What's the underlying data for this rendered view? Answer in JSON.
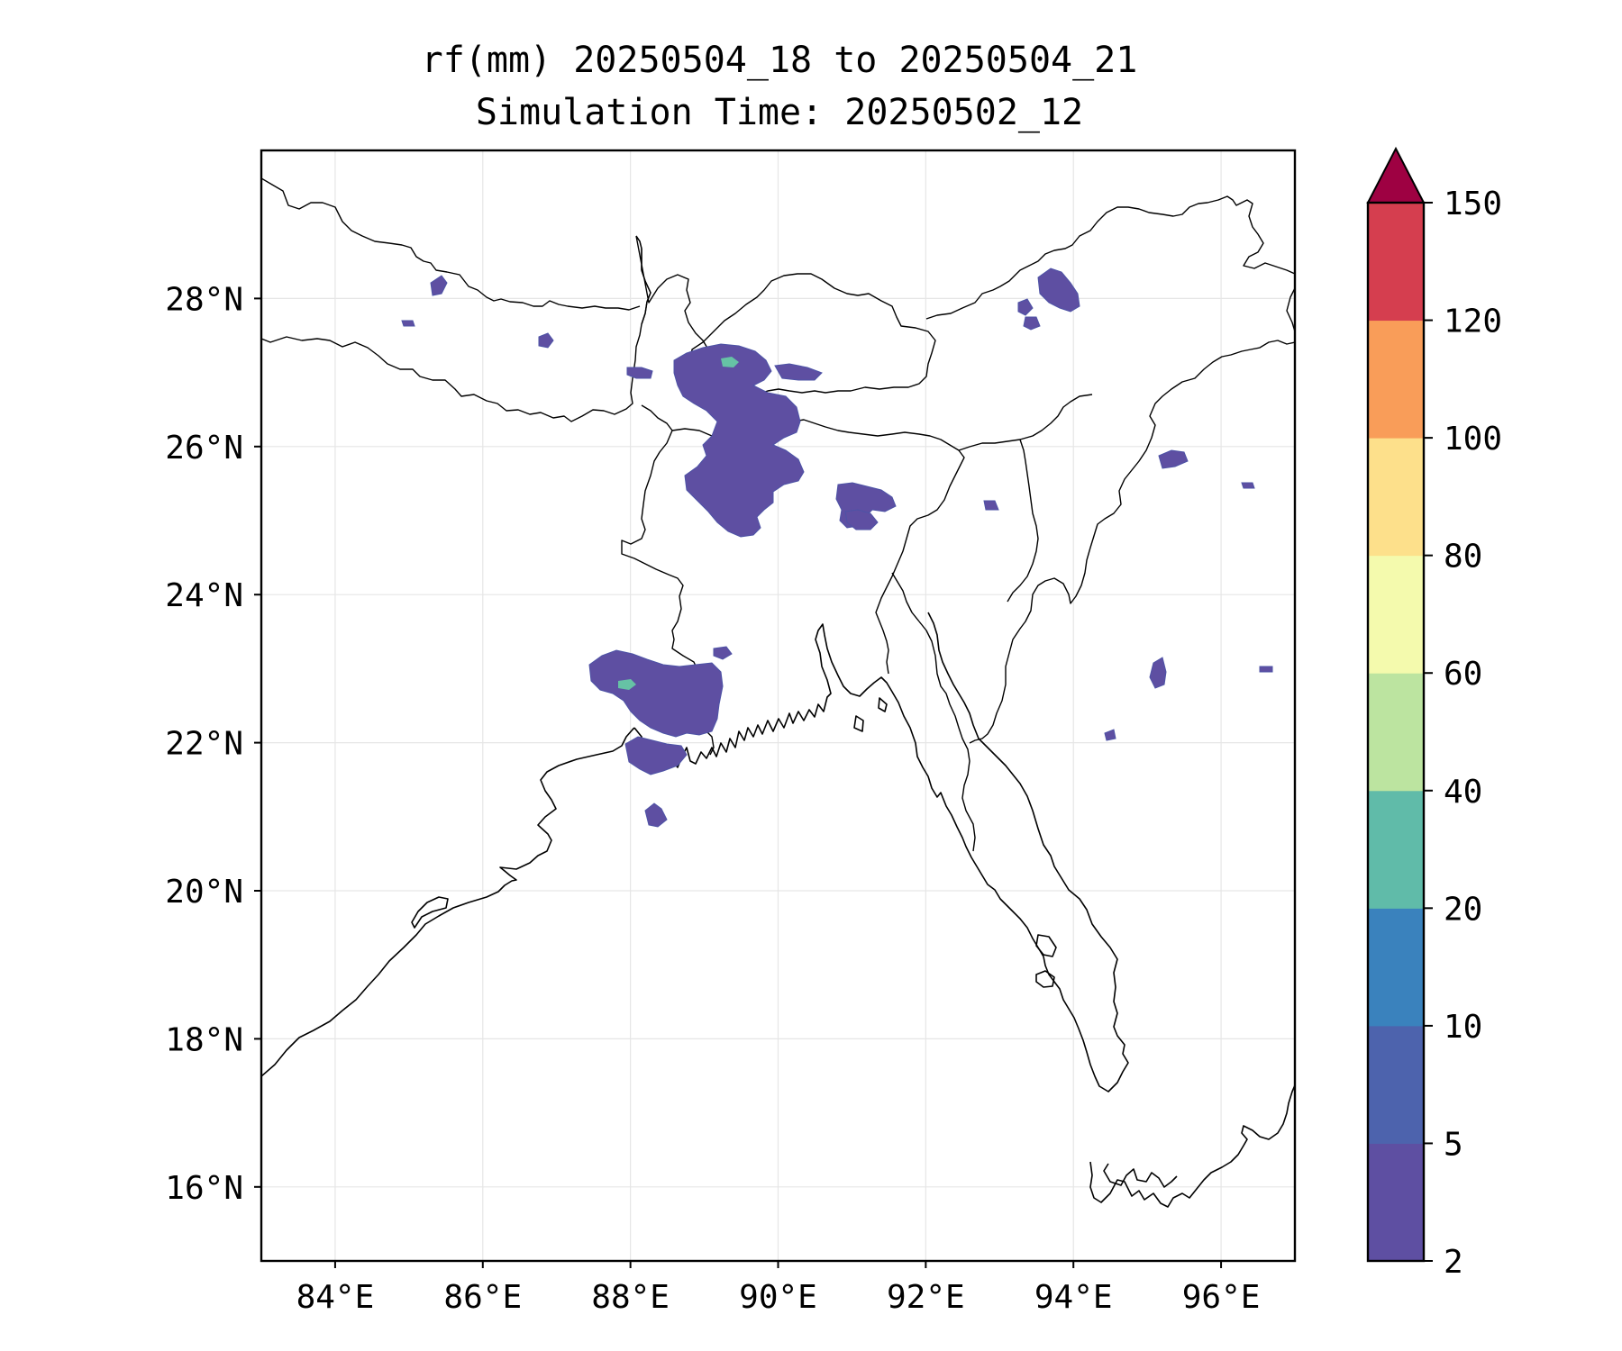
{
  "title": {
    "line1": "rf(mm) 20250504_18 to 20250504_21",
    "line2": "Simulation Time: 20250502_12"
  },
  "map": {
    "extent": {
      "lon": [
        83.0,
        97.0
      ],
      "lat": [
        15.0,
        30.0
      ]
    },
    "gridlines": true,
    "lon_ticks": [
      {
        "value": 84,
        "label": "84°E"
      },
      {
        "value": 86,
        "label": "86°E"
      },
      {
        "value": 88,
        "label": "88°E"
      },
      {
        "value": 90,
        "label": "90°E"
      },
      {
        "value": 92,
        "label": "92°E"
      },
      {
        "value": 94,
        "label": "94°E"
      },
      {
        "value": 96,
        "label": "96°E"
      }
    ],
    "lat_ticks": [
      {
        "value": 16,
        "label": "16°N"
      },
      {
        "value": 18,
        "label": "18°N"
      },
      {
        "value": 20,
        "label": "20°N"
      },
      {
        "value": 22,
        "label": "22°N"
      },
      {
        "value": 24,
        "label": "24°N"
      },
      {
        "value": 26,
        "label": "26°N"
      },
      {
        "value": 28,
        "label": "28°N"
      }
    ]
  },
  "colorbar": {
    "extend": "max",
    "extend_color": "#9e0142",
    "levels": [
      {
        "label": "2"
      },
      {
        "label": "5"
      },
      {
        "label": "10"
      },
      {
        "label": "20"
      },
      {
        "label": "40"
      },
      {
        "label": "60"
      },
      {
        "label": "80"
      },
      {
        "label": "100"
      },
      {
        "label": "120"
      },
      {
        "label": "150"
      }
    ],
    "colors": [
      "#5e4fa2",
      "#4d63ad",
      "#3a82bd",
      "#60bba9",
      "#bce4a0",
      "#f4faad",
      "#fde08b",
      "#f99d59",
      "#d53e4f"
    ]
  }
}
